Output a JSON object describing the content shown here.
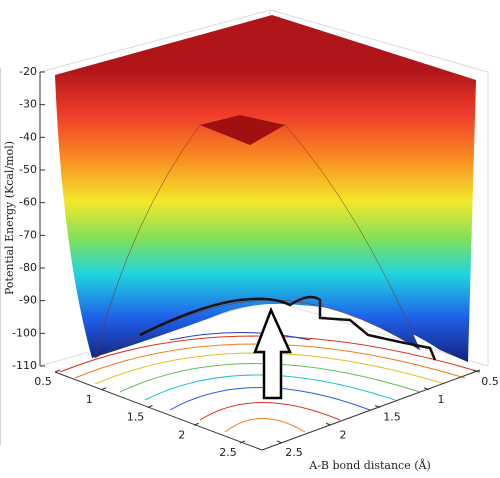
{
  "chart_data": {
    "type": "surface",
    "zlabel": "Potential Energy (Kcal/mol)",
    "ylabel": "A-B bond distance (Å)",
    "zlim": [
      -110,
      -20
    ],
    "zticks": [
      -20,
      -30,
      -40,
      -50,
      -60,
      -70,
      -80,
      -90,
      -100,
      -110
    ],
    "xlim": [
      0.5,
      2.5
    ],
    "xticks": [
      0.5,
      1,
      1.5,
      2,
      2.5
    ],
    "ylim": [
      0.5,
      2.5
    ],
    "yticks": [
      0.5,
      1,
      1.5,
      2,
      2.5
    ]
  }
}
